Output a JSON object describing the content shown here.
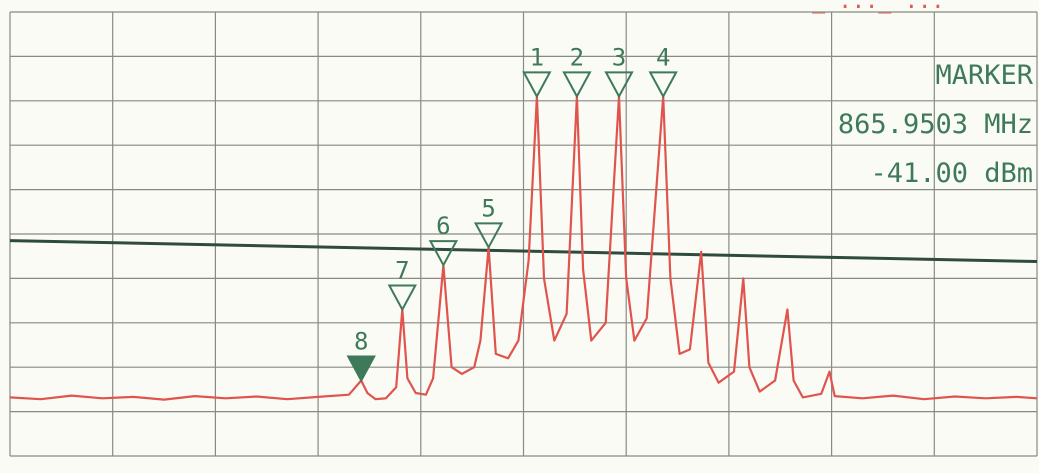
{
  "top_text": "_ ..._ ...",
  "marker_readout": {
    "title": "MARKER",
    "frequency": "865.9503 MHz",
    "level": "-41.00 dBm"
  },
  "colors": {
    "trace": "#e0544e",
    "markers": "#3e7a5a",
    "threshold": "#2f4a3f",
    "grid": "#8a8a84",
    "background": "#fbfbf5"
  },
  "chart_data": {
    "type": "line",
    "title": "",
    "xlabel": "",
    "ylabel": "",
    "grid": true,
    "xlim": [
      0,
      10
    ],
    "ylim": [
      0,
      10
    ],
    "series": [
      {
        "values": [
          [
            0.0,
            1.32
          ],
          [
            0.3,
            1.28
          ],
          [
            0.6,
            1.36
          ],
          [
            0.9,
            1.3
          ],
          [
            1.2,
            1.33
          ],
          [
            1.5,
            1.27
          ],
          [
            1.8,
            1.35
          ],
          [
            2.1,
            1.3
          ],
          [
            2.4,
            1.34
          ],
          [
            2.7,
            1.28
          ],
          [
            3.0,
            1.33
          ],
          [
            3.3,
            1.38
          ],
          [
            3.42,
            1.7
          ],
          [
            3.48,
            1.42
          ],
          [
            3.56,
            1.28
          ],
          [
            3.66,
            1.3
          ],
          [
            3.76,
            1.55
          ],
          [
            3.82,
            3.3
          ],
          [
            3.87,
            1.75
          ],
          [
            3.95,
            1.42
          ],
          [
            4.05,
            1.38
          ],
          [
            4.12,
            1.75
          ],
          [
            4.22,
            4.3
          ],
          [
            4.3,
            2.0
          ],
          [
            4.4,
            1.85
          ],
          [
            4.52,
            2.0
          ],
          [
            4.58,
            2.6
          ],
          [
            4.66,
            4.7
          ],
          [
            4.73,
            2.3
          ],
          [
            4.85,
            2.2
          ],
          [
            4.95,
            2.6
          ],
          [
            5.05,
            4.4
          ],
          [
            5.13,
            8.1
          ],
          [
            5.2,
            4.0
          ],
          [
            5.3,
            2.6
          ],
          [
            5.42,
            3.2
          ],
          [
            5.52,
            8.1
          ],
          [
            5.58,
            4.2
          ],
          [
            5.66,
            2.6
          ],
          [
            5.8,
            3.0
          ],
          [
            5.93,
            8.1
          ],
          [
            6.0,
            4.0
          ],
          [
            6.08,
            2.6
          ],
          [
            6.2,
            3.1
          ],
          [
            6.36,
            8.1
          ],
          [
            6.43,
            4.0
          ],
          [
            6.52,
            2.3
          ],
          [
            6.62,
            2.4
          ],
          [
            6.73,
            4.6
          ],
          [
            6.8,
            2.1
          ],
          [
            6.9,
            1.65
          ],
          [
            7.05,
            1.9
          ],
          [
            7.14,
            4.0
          ],
          [
            7.2,
            2.0
          ],
          [
            7.3,
            1.45
          ],
          [
            7.45,
            1.7
          ],
          [
            7.57,
            3.3
          ],
          [
            7.63,
            1.7
          ],
          [
            7.72,
            1.32
          ],
          [
            7.9,
            1.4
          ],
          [
            7.98,
            1.9
          ],
          [
            8.03,
            1.35
          ],
          [
            8.3,
            1.3
          ],
          [
            8.6,
            1.36
          ],
          [
            8.9,
            1.28
          ],
          [
            9.2,
            1.34
          ],
          [
            9.5,
            1.3
          ],
          [
            9.8,
            1.33
          ],
          [
            10.0,
            1.3
          ]
        ]
      }
    ],
    "threshold_line": {
      "x": [
        0,
        10
      ],
      "y": [
        4.85,
        4.38
      ]
    },
    "markers": [
      {
        "label": "1",
        "x": 5.13,
        "y": 8.1,
        "active": false
      },
      {
        "label": "2",
        "x": 5.52,
        "y": 8.1,
        "active": false
      },
      {
        "label": "3",
        "x": 5.93,
        "y": 8.1,
        "active": false
      },
      {
        "label": "4",
        "x": 6.36,
        "y": 8.1,
        "active": false
      },
      {
        "label": "5",
        "x": 4.66,
        "y": 4.7,
        "active": false
      },
      {
        "label": "6",
        "x": 4.22,
        "y": 4.3,
        "active": false
      },
      {
        "label": "7",
        "x": 3.82,
        "y": 3.3,
        "active": false
      },
      {
        "label": "8",
        "x": 3.42,
        "y": 1.7,
        "active": true
      }
    ]
  }
}
